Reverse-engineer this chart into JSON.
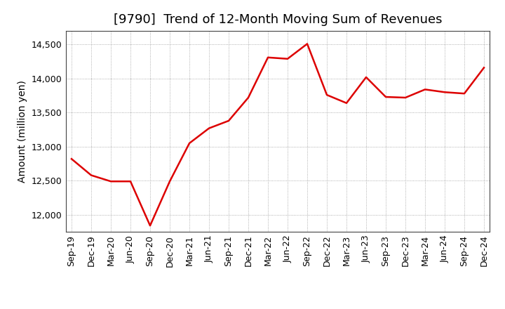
{
  "title": "[9790]  Trend of 12-Month Moving Sum of Revenues",
  "ylabel": "Amount (million yen)",
  "line_color": "#dd0000",
  "background_color": "#ffffff",
  "plot_bg_color": "#ffffff",
  "grid_color": "#999999",
  "x_labels": [
    "Sep-19",
    "Dec-19",
    "Mar-20",
    "Jun-20",
    "Sep-20",
    "Dec-20",
    "Mar-21",
    "Jun-21",
    "Sep-21",
    "Dec-21",
    "Mar-22",
    "Jun-22",
    "Sep-22",
    "Dec-22",
    "Mar-23",
    "Jun-23",
    "Sep-23",
    "Dec-23",
    "Mar-24",
    "Jun-24",
    "Sep-24",
    "Dec-24"
  ],
  "values": [
    12820,
    12580,
    12490,
    12490,
    11840,
    12490,
    13050,
    13270,
    13380,
    13720,
    14310,
    14290,
    14510,
    13760,
    13640,
    14020,
    13730,
    13720,
    13840,
    13800,
    13780,
    14160
  ],
  "ylim": [
    11750,
    14700
  ],
  "yticks": [
    12000,
    12500,
    13000,
    13500,
    14000,
    14500
  ],
  "title_fontsize": 13,
  "ylabel_fontsize": 10,
  "tick_fontsize": 9
}
